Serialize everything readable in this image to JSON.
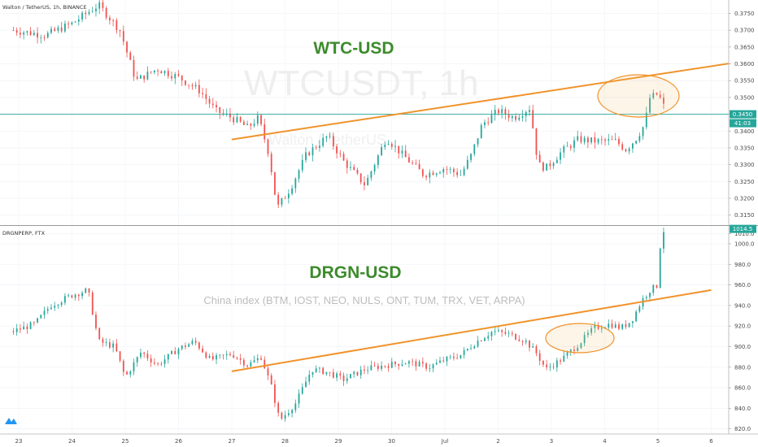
{
  "top_panel": {
    "symbol_label": "Walton / TetherUS, 1h, BINANCE",
    "title": "WTC-USD",
    "watermark_ticker": "WTCUSDT, 1h",
    "watermark_name": "Walton / TetherUS",
    "price_tag": "0.3450",
    "countdown_tag": "41:03",
    "y_ticks": [
      "0.3750",
      "0.3700",
      "0.3650",
      "0.3600",
      "0.3550",
      "0.3500",
      "0.3450",
      "0.3400",
      "0.3350",
      "0.3300",
      "0.3250",
      "0.3200",
      "0.3150"
    ]
  },
  "bottom_panel": {
    "symbol_label": "DRGNPERP, FTX",
    "title": "DRGN-USD",
    "note": "China index (BTM, IOST, NEO, NULS, ONT, TUM, TRX, VET, ARPA)",
    "price_tag": "1014.5",
    "y_ticks": [
      "1010.0",
      "1000.0",
      "980.0",
      "960.0",
      "940.0",
      "920.0",
      "900.0",
      "880.0",
      "860.0",
      "840.0",
      "820.0"
    ]
  },
  "x_axis": {
    "ticks": [
      "23",
      "24",
      "25",
      "26",
      "27",
      "28",
      "29",
      "30",
      "Jul",
      "2",
      "3",
      "4",
      "5",
      "6"
    ]
  },
  "colors": {
    "up": "#26a69a",
    "down": "#ef5350",
    "trendline": "#f0932b",
    "price_line": "#26a69a",
    "title": "#3d8b2c"
  },
  "chart_data": [
    {
      "type": "candlestick",
      "title": "WTC-USD",
      "symbol": "Walton / TetherUS, 1h, BINANCE",
      "ylim": [
        0.3125,
        0.3785
      ],
      "x_ticks": [
        "23",
        "24",
        "25",
        "26",
        "27",
        "28",
        "29",
        "30",
        "Jul",
        "2",
        "3",
        "4",
        "5",
        "6"
      ],
      "last_price": 0.345,
      "series_close_path": [
        {
          "day": 22.9,
          "close": 0.37
        },
        {
          "day": 23.5,
          "close": 0.3685
        },
        {
          "day": 24.0,
          "close": 0.372
        },
        {
          "day": 24.5,
          "close": 0.3775
        },
        {
          "day": 24.9,
          "close": 0.37
        },
        {
          "day": 25.2,
          "close": 0.355
        },
        {
          "day": 25.6,
          "close": 0.3585
        },
        {
          "day": 26.0,
          "close": 0.356
        },
        {
          "day": 26.4,
          "close": 0.352
        },
        {
          "day": 26.7,
          "close": 0.346
        },
        {
          "day": 27.0,
          "close": 0.344
        },
        {
          "day": 27.3,
          "close": 0.341
        },
        {
          "day": 27.5,
          "close": 0.344
        },
        {
          "day": 27.7,
          "close": 0.333
        },
        {
          "day": 27.85,
          "close": 0.317
        },
        {
          "day": 28.1,
          "close": 0.323
        },
        {
          "day": 28.4,
          "close": 0.333
        },
        {
          "day": 28.8,
          "close": 0.3385
        },
        {
          "day": 29.1,
          "close": 0.331
        },
        {
          "day": 29.5,
          "close": 0.324
        },
        {
          "day": 29.9,
          "close": 0.338
        },
        {
          "day": 30.2,
          "close": 0.333
        },
        {
          "day": 30.6,
          "close": 0.327
        },
        {
          "day": 31.0,
          "close": 0.329
        },
        {
          "day": 31.3,
          "close": 0.327
        },
        {
          "day": 31.5,
          "close": 0.333
        },
        {
          "day": 31.7,
          "close": 0.342
        },
        {
          "day": 32.0,
          "close": 0.346
        },
        {
          "day": 32.3,
          "close": 0.344
        },
        {
          "day": 32.6,
          "close": 0.347
        },
        {
          "day": 32.75,
          "close": 0.33
        },
        {
          "day": 32.9,
          "close": 0.329
        },
        {
          "day": 33.2,
          "close": 0.334
        },
        {
          "day": 33.5,
          "close": 0.3375
        },
        {
          "day": 33.8,
          "close": 0.337
        },
        {
          "day": 34.2,
          "close": 0.337
        },
        {
          "day": 34.4,
          "close": 0.3345
        },
        {
          "day": 34.6,
          "close": 0.338
        },
        {
          "day": 34.75,
          "close": 0.342
        },
        {
          "day": 34.85,
          "close": 0.35
        },
        {
          "day": 35.0,
          "close": 0.351
        },
        {
          "day": 35.15,
          "close": 0.346
        }
      ],
      "trendline": [
        {
          "day": 27.0,
          "value": 0.3375
        },
        {
          "day": 36.5,
          "value": 0.3605
        }
      ],
      "highlight": "ellipse around days 34.7–35.3"
    },
    {
      "type": "candlestick",
      "title": "DRGN-USD",
      "symbol": "DRGNPERP, FTX",
      "ylim": [
        815,
        1015
      ],
      "x_ticks": [
        "23",
        "24",
        "25",
        "26",
        "27",
        "28",
        "29",
        "30",
        "Jul",
        "2",
        "3",
        "4",
        "5",
        "6"
      ],
      "last_price": 1014.5,
      "series_close_path": [
        {
          "day": 22.9,
          "close": 915
        },
        {
          "day": 23.3,
          "close": 922
        },
        {
          "day": 23.6,
          "close": 940
        },
        {
          "day": 24.0,
          "close": 950
        },
        {
          "day": 24.3,
          "close": 955
        },
        {
          "day": 24.5,
          "close": 905
        },
        {
          "day": 24.8,
          "close": 900
        },
        {
          "day": 25.0,
          "close": 870
        },
        {
          "day": 25.3,
          "close": 895
        },
        {
          "day": 25.6,
          "close": 882
        },
        {
          "day": 26.0,
          "close": 898
        },
        {
          "day": 26.3,
          "close": 905
        },
        {
          "day": 26.6,
          "close": 887
        },
        {
          "day": 27.0,
          "close": 893
        },
        {
          "day": 27.3,
          "close": 882
        },
        {
          "day": 27.55,
          "close": 890
        },
        {
          "day": 27.75,
          "close": 860
        },
        {
          "day": 27.9,
          "close": 828
        },
        {
          "day": 28.2,
          "close": 845
        },
        {
          "day": 28.5,
          "close": 878
        },
        {
          "day": 28.8,
          "close": 875
        },
        {
          "day": 29.1,
          "close": 868
        },
        {
          "day": 29.5,
          "close": 878
        },
        {
          "day": 29.9,
          "close": 882
        },
        {
          "day": 30.3,
          "close": 885
        },
        {
          "day": 30.7,
          "close": 880
        },
        {
          "day": 31.0,
          "close": 887
        },
        {
          "day": 31.3,
          "close": 892
        },
        {
          "day": 31.6,
          "close": 905
        },
        {
          "day": 31.9,
          "close": 915
        },
        {
          "day": 32.2,
          "close": 912
        },
        {
          "day": 32.5,
          "close": 906
        },
        {
          "day": 32.7,
          "close": 895
        },
        {
          "day": 32.9,
          "close": 878
        },
        {
          "day": 33.2,
          "close": 888
        },
        {
          "day": 33.5,
          "close": 902
        },
        {
          "day": 33.8,
          "close": 918
        },
        {
          "day": 34.1,
          "close": 922
        },
        {
          "day": 34.3,
          "close": 918
        },
        {
          "day": 34.5,
          "close": 925
        },
        {
          "day": 34.7,
          "close": 945
        },
        {
          "day": 34.85,
          "close": 955
        },
        {
          "day": 35.0,
          "close": 960
        },
        {
          "day": 35.05,
          "close": 1005
        },
        {
          "day": 35.12,
          "close": 1014.5
        }
      ],
      "trendline": [
        {
          "day": 27.0,
          "value": 876
        },
        {
          "day": 36.0,
          "value": 955
        }
      ],
      "highlight": "ellipse around days 33.5–34.4"
    }
  ]
}
